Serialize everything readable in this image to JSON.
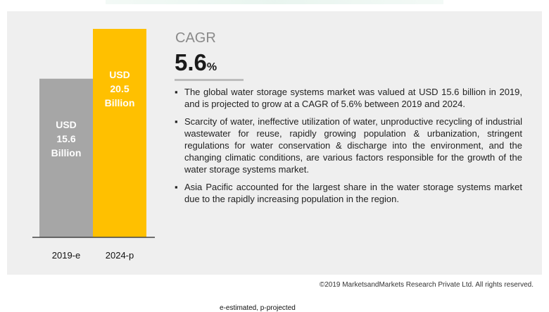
{
  "chart_data": {
    "type": "bar",
    "categories": [
      "2019-e",
      "2024-p"
    ],
    "values": [
      15.6,
      20.5
    ],
    "bar_labels": [
      [
        "USD",
        "15.6",
        "Billion"
      ],
      [
        "USD",
        "20.5",
        "Billion"
      ]
    ],
    "colors": [
      "#a6a6a6",
      "#ffc000"
    ],
    "ylim": [
      0,
      20.5
    ],
    "grid": false
  },
  "cagr": {
    "label": "CAGR",
    "value": "5.6",
    "unit": "%"
  },
  "bullets": [
    "The global water storage systems market was valued at USD 15.6 billion in 2019, and is projected to grow at a CAGR of 5.6% between 2019 and 2024.",
    "Scarcity of water, ineffective utilization of water, unproductive recycling of industrial wastewater for reuse, rapidly growing population & urbanization, stringent regulations for water conservation & discharge into the environment, and the changing climatic conditions, are various factors responsible for the growth of the water storage systems market.",
    "Asia Pacific accounted for the largest share in the water storage systems market due to the rapidly increasing population in the region."
  ],
  "copyright": "©2019 MarketsandMarkets Research Private Ltd. All rights reserved.",
  "footnote": "e-estimated, p-projected"
}
